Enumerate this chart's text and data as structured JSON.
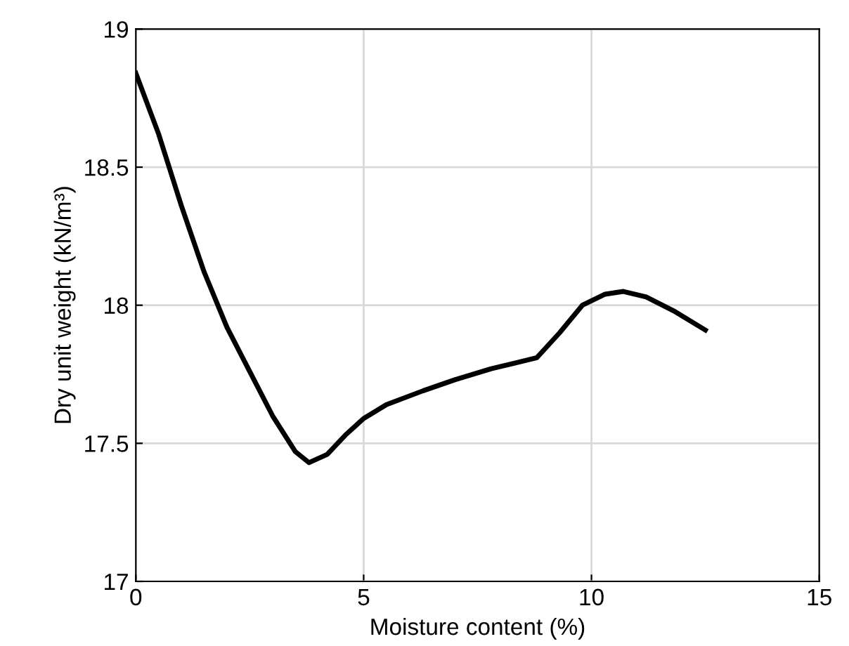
{
  "chart_data": {
    "type": "line",
    "xlabel": "Moisture content (%)",
    "ylabel": "Dry unit weight (kN/m³)",
    "x": [
      0,
      0.5,
      1,
      1.5,
      2,
      2.5,
      3,
      3.5,
      3.8,
      4.2,
      4.6,
      5,
      5.5,
      6.3,
      7,
      7.8,
      8.3,
      8.8,
      9.3,
      9.8,
      10.3,
      10.7,
      11.2,
      11.8,
      12.5
    ],
    "series": [
      {
        "color": "#000000",
        "values": [
          18.84,
          18.62,
          18.36,
          18.12,
          17.92,
          17.76,
          17.6,
          17.47,
          17.43,
          17.46,
          17.53,
          17.59,
          17.64,
          17.69,
          17.73,
          17.77,
          17.79,
          17.81,
          17.9,
          18.0,
          18.04,
          18.05,
          18.03,
          17.98,
          17.91
        ]
      }
    ],
    "xlim": [
      0,
      15
    ],
    "ylim": [
      17,
      19
    ],
    "xticks": [
      0,
      5,
      10,
      15
    ],
    "yticks": [
      17,
      17.5,
      18,
      18.5,
      19
    ],
    "grid": true,
    "marker": "none",
    "line_style": "solid"
  }
}
